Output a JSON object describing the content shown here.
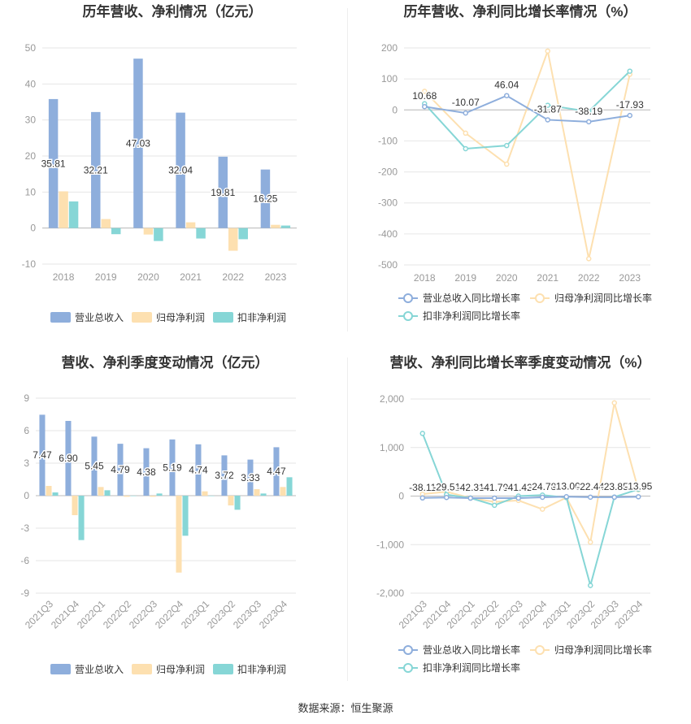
{
  "source": "数据来源：恒生聚源",
  "colors": {
    "revenue": "#8eaedc",
    "netProfit": "#fde0b0",
    "deducted": "#86d6d6",
    "grid": "#e6e6e6",
    "axis": "#999999",
    "label": "#333333"
  },
  "chart_data": [
    {
      "type": "bar",
      "title": "历年营收、净利情况（亿元）",
      "categories": [
        "2018",
        "2019",
        "2020",
        "2021",
        "2022",
        "2023"
      ],
      "ylim": [
        -10,
        50
      ],
      "yticks": [
        -10,
        0,
        10,
        20,
        30,
        40,
        50
      ],
      "yticklabels": [
        "-10",
        "0",
        "10",
        "20",
        "30",
        "40",
        "50"
      ],
      "series": [
        {
          "name": "营业总收入",
          "values": [
            35.81,
            32.21,
            47.03,
            32.04,
            19.81,
            16.25
          ],
          "labels": [
            "35.81",
            "32.21",
            "47.03",
            "32.04",
            "19.81",
            "16.25"
          ]
        },
        {
          "name": "归母净利润",
          "values": [
            10.2,
            2.5,
            -1.8,
            1.6,
            -6.3,
            0.9
          ]
        },
        {
          "name": "扣非净利润",
          "values": [
            7.4,
            -1.7,
            -3.6,
            -2.9,
            -3.1,
            0.7
          ]
        }
      ]
    },
    {
      "type": "line",
      "title": "历年营收、净利同比增长率情况（%）",
      "categories": [
        "2018",
        "2019",
        "2020",
        "2021",
        "2022",
        "2023"
      ],
      "ylim": [
        -500,
        200
      ],
      "yticks": [
        -500,
        -400,
        -300,
        -200,
        -100,
        0,
        100,
        200
      ],
      "yticklabels": [
        "-500",
        "-400",
        "-300",
        "-200",
        "-100",
        "0",
        "100",
        "200"
      ],
      "series": [
        {
          "name": "营业总收入同比增长率",
          "values": [
            10.68,
            -10.07,
            46.04,
            -31.87,
            -38.19,
            -17.93
          ],
          "labels": [
            "10.68",
            "-10.07",
            "46.04",
            "-31.87",
            "-38.19",
            "-17.93"
          ]
        },
        {
          "name": "归母净利润同比增长率",
          "values": [
            60,
            -75,
            -175,
            190,
            -480,
            115
          ]
        },
        {
          "name": "扣非净利润同比增长率",
          "values": [
            20,
            -125,
            -115,
            15,
            -5,
            125
          ]
        }
      ]
    },
    {
      "type": "bar",
      "title": "营收、净利季度变动情况（亿元）",
      "categories": [
        "2021Q3",
        "2021Q4",
        "2022Q1",
        "2022Q2",
        "2022Q3",
        "2022Q4",
        "2023Q1",
        "2023Q2",
        "2023Q3",
        "2023Q4"
      ],
      "ylim": [
        -9,
        9
      ],
      "yticks": [
        -9,
        -6,
        -3,
        0,
        3,
        6,
        9
      ],
      "yticklabels": [
        "-9",
        "-6",
        "-3",
        "0",
        "3",
        "6",
        "9"
      ],
      "series": [
        {
          "name": "营业总收入",
          "values": [
            7.47,
            6.9,
            5.45,
            4.79,
            4.38,
            5.19,
            4.74,
            3.72,
            3.33,
            4.47
          ],
          "labels": [
            "7.47",
            "6.90",
            "5.45",
            "4.79",
            "4.38",
            "5.19",
            "4.74",
            "3.72",
            "3.33",
            "4.47"
          ]
        },
        {
          "name": "归母净利润",
          "values": [
            0.9,
            -1.8,
            0.8,
            -0.1,
            -0.1,
            -7.1,
            0.4,
            -0.9,
            0.6,
            0.8
          ]
        },
        {
          "name": "扣非净利润",
          "values": [
            0.3,
            -4.1,
            0.5,
            0.0,
            0.2,
            -3.7,
            0.0,
            -1.3,
            0.2,
            1.7
          ]
        }
      ]
    },
    {
      "type": "line",
      "title": "营收、净利同比增长率季度变动情况（%）",
      "categories": [
        "2021Q3",
        "2021Q4",
        "2022Q1",
        "2022Q2",
        "2022Q3",
        "2022Q4",
        "2023Q1",
        "2023Q2",
        "2023Q3",
        "2023Q4"
      ],
      "ylim": [
        -2000,
        2000
      ],
      "yticks": [
        -2000,
        -1000,
        0,
        1000,
        2000
      ],
      "yticklabels": [
        "-2,000",
        "-1,000",
        "0",
        "1,000",
        "2,000"
      ],
      "series": [
        {
          "name": "营业总收入同比增长率",
          "values": [
            -38.11,
            -29.51,
            -42.31,
            -41.79,
            -41.42,
            -24.78,
            -13.0,
            -22.44,
            -23.85,
            -13.95
          ],
          "labels": [
            "-38.11",
            "-29.51",
            "-42.31",
            "-41.79",
            "-41.42",
            "-24.78",
            "-13.00",
            "-22.44",
            "-23.85",
            "-13.95"
          ]
        },
        {
          "name": "归母净利润同比增长率",
          "values": [
            40,
            90,
            -40,
            -120,
            -90,
            -270,
            -30,
            -950,
            1920,
            130
          ]
        },
        {
          "name": "扣非净利润同比增长率",
          "values": [
            1290,
            30,
            -40,
            -190,
            0,
            20,
            -30,
            -1840,
            -20,
            140
          ]
        }
      ]
    }
  ]
}
